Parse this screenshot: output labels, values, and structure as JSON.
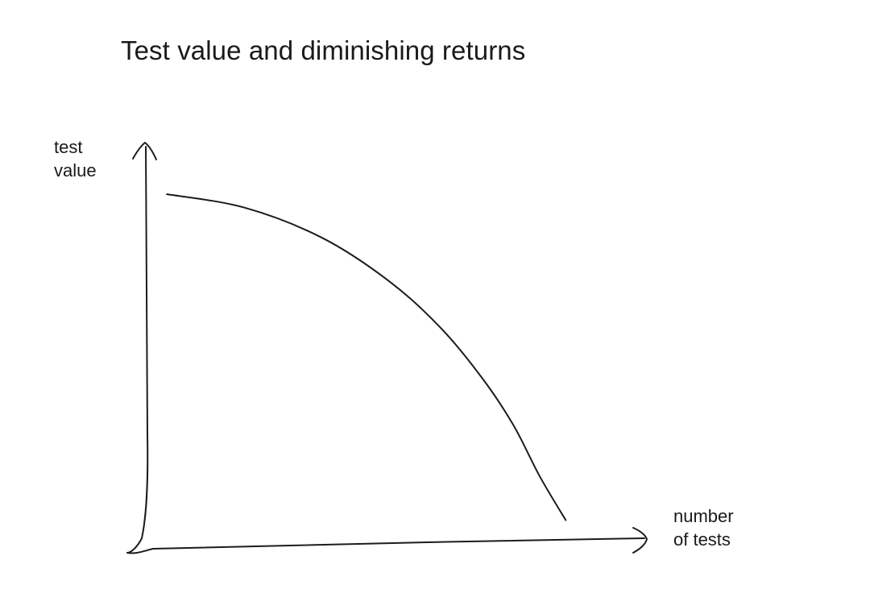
{
  "chart_data": {
    "type": "line",
    "title": "Test value and diminishing returns",
    "ylabel_lines": [
      "test",
      "value"
    ],
    "xlabel_lines": [
      "number",
      "of tests"
    ],
    "xlim": [
      0,
      100
    ],
    "ylim": [
      0,
      100
    ],
    "grid": false,
    "ticks": false,
    "style": "hand-drawn sketch",
    "series": [
      {
        "x": [
          5,
          20,
          35,
          48,
          58,
          66,
          72,
          77,
          82
        ],
        "y": [
          100,
          96,
          87,
          74,
          60,
          45,
          31,
          16,
          3
        ]
      }
    ]
  }
}
